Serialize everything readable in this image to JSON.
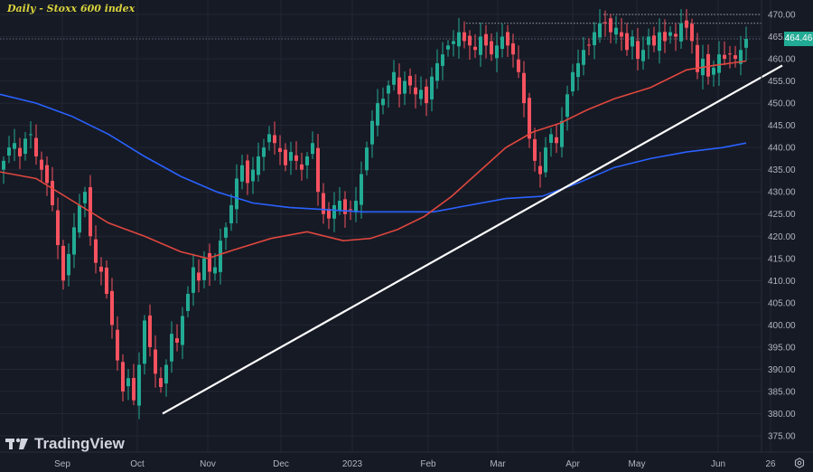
{
  "header": {
    "title": "Daily - Stoxx 600 index"
  },
  "branding": {
    "logo_text": "TradingView"
  },
  "last_price": "464.46",
  "colors": {
    "background": "#161a25",
    "grid": "#232734",
    "up_candle": "#22ab94",
    "down_candle": "#f7525f",
    "ma_red": "#e0473e",
    "ma_blue": "#2962ff",
    "trendline": "#ffffff",
    "title": "#d8d23c",
    "last_price_badge": "#22ab94"
  },
  "chart_data": {
    "type": "candlestick",
    "title": "Daily - Stoxx 600 index",
    "xlabel": "",
    "ylabel": "",
    "ylim": [
      373,
      472
    ],
    "y_ticks": [
      375,
      380,
      385,
      390,
      395,
      400,
      405,
      410,
      415,
      420,
      425,
      430,
      435,
      440,
      445,
      450,
      455,
      460,
      465,
      470
    ],
    "x_ticks": [
      {
        "label": "Sep",
        "x": 69
      },
      {
        "label": "Oct",
        "x": 152
      },
      {
        "label": "Nov",
        "x": 230
      },
      {
        "label": "Dec",
        "x": 311
      },
      {
        "label": "2023",
        "x": 390
      },
      {
        "label": "Feb",
        "x": 474
      },
      {
        "label": "Mar",
        "x": 551
      },
      {
        "label": "Apr",
        "x": 634
      },
      {
        "label": "May",
        "x": 705
      },
      {
        "label": "Jun",
        "x": 795
      },
      {
        "label": "26",
        "x": 853
      }
    ],
    "last_price": 464.46,
    "series": [
      {
        "name": "Moving average (red, ~100-day)",
        "color": "#e0473e",
        "points": [
          [
            0,
            434.5
          ],
          [
            40,
            433
          ],
          [
            80,
            428
          ],
          [
            120,
            423
          ],
          [
            160,
            420
          ],
          [
            200,
            416.5
          ],
          [
            230,
            415
          ],
          [
            260,
            417
          ],
          [
            300,
            419.5
          ],
          [
            340,
            421
          ],
          [
            380,
            419
          ],
          [
            410,
            419.5
          ],
          [
            440,
            421.5
          ],
          [
            470,
            424.5
          ],
          [
            500,
            429
          ],
          [
            530,
            434.5
          ],
          [
            560,
            440
          ],
          [
            590,
            443.5
          ],
          [
            620,
            445.5
          ],
          [
            650,
            448.5
          ],
          [
            680,
            451
          ],
          [
            720,
            453.5
          ],
          [
            760,
            457.5
          ],
          [
            790,
            458.5
          ],
          [
            826,
            459.5
          ]
        ]
      },
      {
        "name": "Moving average (blue, ~200-day)",
        "color": "#2962ff",
        "points": [
          [
            0,
            452
          ],
          [
            40,
            450
          ],
          [
            80,
            447
          ],
          [
            120,
            443
          ],
          [
            160,
            438
          ],
          [
            200,
            433.5
          ],
          [
            240,
            430
          ],
          [
            280,
            427.5
          ],
          [
            320,
            426.5
          ],
          [
            360,
            426
          ],
          [
            400,
            425.5
          ],
          [
            440,
            425.5
          ],
          [
            480,
            425.5
          ],
          [
            520,
            427
          ],
          [
            560,
            428.5
          ],
          [
            600,
            429
          ],
          [
            640,
            432
          ],
          [
            680,
            435.5
          ],
          [
            720,
            437.5
          ],
          [
            760,
            439
          ],
          [
            800,
            440
          ],
          [
            826,
            441
          ]
        ]
      },
      {
        "name": "Support trendline",
        "color": "#ffffff",
        "points": [
          [
            180,
            380
          ],
          [
            866,
            458.5
          ]
        ]
      },
      {
        "name": "Resistance (dotted)",
        "color": "#b2b5be",
        "levels": [
          470,
          468,
          464.5
        ]
      }
    ]
  }
}
